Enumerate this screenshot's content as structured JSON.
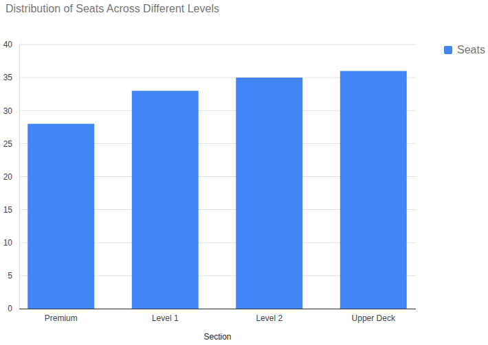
{
  "chart_data": {
    "type": "bar",
    "title": "Distribution of Seats Across Different Levels",
    "x_label": "Section",
    "categories": [
      "Premium",
      "Level 1",
      "Level 2",
      "Upper Deck"
    ],
    "series": [
      {
        "name": "Seats",
        "color": "#4285f4",
        "values": [
          28,
          33,
          35,
          36
        ]
      }
    ],
    "ylim": [
      0,
      40
    ],
    "yticks": [
      0,
      5,
      10,
      15,
      20,
      25,
      30,
      35,
      40
    ],
    "grid": true,
    "legend": "right"
  }
}
